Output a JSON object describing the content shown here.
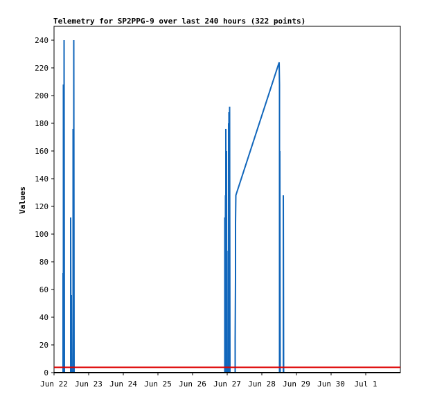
{
  "chart_data": {
    "type": "line",
    "title": "Telemetry for SP2PPG-9 over last 240 hours (322 points)",
    "xlabel": "",
    "ylabel": "Values",
    "x_ticks": [
      "Jun 22",
      "Jun 23",
      "Jun 24",
      "Jun 25",
      "Jun 26",
      "Jun 27",
      "Jun 28",
      "Jun 29",
      "Jun 30",
      "Jul 1"
    ],
    "x_range_days": [
      0,
      10
    ],
    "ylim": [
      0,
      250
    ],
    "y_ticks": [
      0,
      20,
      40,
      60,
      80,
      100,
      120,
      140,
      160,
      180,
      200,
      220,
      240
    ],
    "grid": false,
    "series": [
      {
        "color": "#1166bb",
        "points": [
          [
            0.26,
            0
          ],
          [
            0.26,
            72
          ],
          [
            0.27,
            0
          ],
          [
            0.27,
            208
          ],
          [
            0.28,
            0
          ],
          [
            0.28,
            130
          ],
          [
            0.29,
            0
          ],
          [
            0.29,
            240
          ],
          [
            0.3,
            0
          ],
          [
            0.48,
            0
          ],
          [
            0.48,
            112
          ],
          [
            0.49,
            0
          ],
          [
            0.5,
            56
          ],
          [
            0.51,
            0
          ],
          [
            0.55,
            0
          ],
          [
            0.55,
            176
          ],
          [
            0.56,
            0
          ],
          [
            0.56,
            120
          ],
          [
            0.57,
            0
          ],
          [
            0.57,
            240
          ],
          [
            0.58,
            0
          ],
          [
            4.93,
            0
          ],
          [
            4.93,
            112
          ],
          [
            4.94,
            0
          ],
          [
            4.95,
            128
          ],
          [
            4.96,
            0
          ],
          [
            4.96,
            176
          ],
          [
            4.97,
            0
          ],
          [
            4.98,
            160
          ],
          [
            4.99,
            0
          ],
          [
            5.03,
            0
          ],
          [
            5.03,
            88
          ],
          [
            5.04,
            0
          ],
          [
            5.04,
            180
          ],
          [
            5.05,
            0
          ],
          [
            5.05,
            188
          ],
          [
            5.06,
            0
          ],
          [
            5.06,
            96
          ],
          [
            5.07,
            0
          ],
          [
            5.07,
            192
          ],
          [
            5.08,
            0
          ],
          [
            5.23,
            0
          ],
          [
            5.23,
            24
          ],
          [
            5.24,
            68
          ],
          [
            5.24,
            108
          ],
          [
            5.25,
            128
          ],
          [
            6.5,
            224
          ],
          [
            6.51,
            208
          ],
          [
            6.51,
            0
          ],
          [
            6.52,
            160
          ],
          [
            6.53,
            0
          ],
          [
            6.62,
            0
          ],
          [
            6.62,
            128
          ],
          [
            6.63,
            0
          ]
        ]
      },
      {
        "color": "#dd0000",
        "points": [
          [
            0.0,
            3.8
          ],
          [
            10.0,
            3.8
          ]
        ]
      },
      {
        "color": "#000000",
        "points": [
          [
            0.0,
            0
          ],
          [
            10.0,
            0
          ]
        ]
      }
    ]
  }
}
